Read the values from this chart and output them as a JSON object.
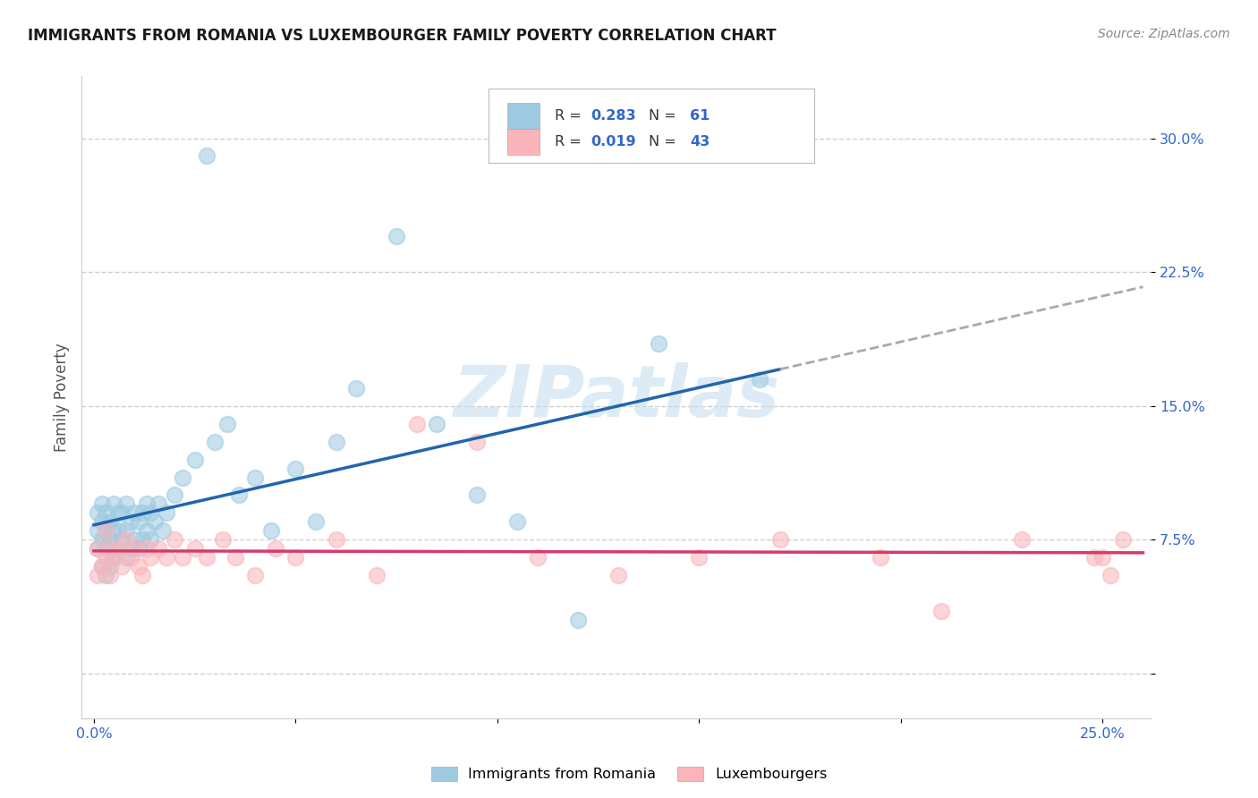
{
  "title": "IMMIGRANTS FROM ROMANIA VS LUXEMBOURGER FAMILY POVERTY CORRELATION CHART",
  "source": "Source: ZipAtlas.com",
  "ylabel": "Family Poverty",
  "x_tick_labels": [
    "0.0%",
    "",
    "",
    "",
    "",
    "25.0%"
  ],
  "y_tick_labels": [
    "",
    "7.5%",
    "15.0%",
    "22.5%",
    "30.0%"
  ],
  "xlim": [
    -0.003,
    0.262
  ],
  "ylim": [
    -0.025,
    0.335
  ],
  "legend_romania_label": "Immigrants from Romania",
  "legend_luxembourgers_label": "Luxembourgers",
  "color_romania": "#9ecae1",
  "color_luxembourgers": "#fbb4b9",
  "color_romania_line": "#2166ac",
  "color_luxembourgers_line": "#d63b6e",
  "color_dashed_line": "#aaaaaa",
  "background_color": "#ffffff",
  "grid_color": "#d0d0d0",
  "watermark": "ZIPatlas",
  "romania_x": [
    0.001,
    0.001,
    0.001,
    0.002,
    0.002,
    0.002,
    0.002,
    0.003,
    0.003,
    0.003,
    0.003,
    0.004,
    0.004,
    0.004,
    0.005,
    0.005,
    0.005,
    0.006,
    0.006,
    0.006,
    0.007,
    0.007,
    0.008,
    0.008,
    0.008,
    0.009,
    0.009,
    0.01,
    0.01,
    0.011,
    0.011,
    0.012,
    0.012,
    0.013,
    0.013,
    0.014,
    0.014,
    0.015,
    0.016,
    0.017,
    0.018,
    0.02,
    0.022,
    0.025,
    0.028,
    0.03,
    0.033,
    0.036,
    0.04,
    0.044,
    0.05,
    0.055,
    0.06,
    0.065,
    0.075,
    0.085,
    0.095,
    0.105,
    0.12,
    0.14,
    0.165
  ],
  "romania_y": [
    0.07,
    0.08,
    0.09,
    0.06,
    0.075,
    0.085,
    0.095,
    0.055,
    0.07,
    0.08,
    0.09,
    0.06,
    0.075,
    0.085,
    0.065,
    0.08,
    0.095,
    0.07,
    0.08,
    0.09,
    0.075,
    0.09,
    0.065,
    0.08,
    0.095,
    0.07,
    0.085,
    0.075,
    0.09,
    0.07,
    0.085,
    0.075,
    0.09,
    0.08,
    0.095,
    0.075,
    0.09,
    0.085,
    0.095,
    0.08,
    0.09,
    0.1,
    0.11,
    0.12,
    0.29,
    0.13,
    0.14,
    0.1,
    0.11,
    0.08,
    0.115,
    0.085,
    0.13,
    0.16,
    0.245,
    0.14,
    0.1,
    0.085,
    0.03,
    0.185,
    0.165
  ],
  "luxembourgers_x": [
    0.001,
    0.001,
    0.002,
    0.003,
    0.003,
    0.004,
    0.004,
    0.005,
    0.006,
    0.007,
    0.008,
    0.009,
    0.01,
    0.011,
    0.012,
    0.013,
    0.014,
    0.016,
    0.018,
    0.02,
    0.022,
    0.025,
    0.028,
    0.032,
    0.035,
    0.04,
    0.045,
    0.05,
    0.06,
    0.07,
    0.08,
    0.095,
    0.11,
    0.13,
    0.15,
    0.17,
    0.195,
    0.21,
    0.23,
    0.248,
    0.25,
    0.252,
    0.255
  ],
  "luxembourgers_y": [
    0.055,
    0.07,
    0.06,
    0.065,
    0.08,
    0.055,
    0.07,
    0.065,
    0.07,
    0.06,
    0.075,
    0.065,
    0.07,
    0.06,
    0.055,
    0.07,
    0.065,
    0.07,
    0.065,
    0.075,
    0.065,
    0.07,
    0.065,
    0.075,
    0.065,
    0.055,
    0.07,
    0.065,
    0.075,
    0.055,
    0.14,
    0.13,
    0.065,
    0.055,
    0.065,
    0.075,
    0.065,
    0.035,
    0.075,
    0.065,
    0.065,
    0.055,
    0.075
  ]
}
